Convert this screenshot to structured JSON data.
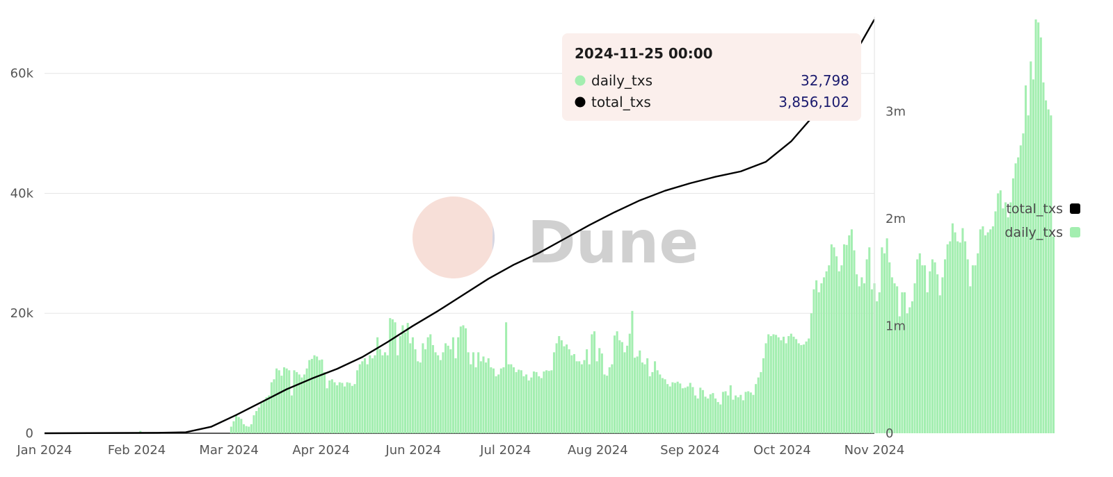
{
  "chart_data": {
    "type": "bar+line",
    "title": "",
    "xlabel": "",
    "ylabel": "",
    "x_range": [
      "2024-01-01",
      "2024-11-25"
    ],
    "x_ticks": [
      "Jan 2024",
      "Feb 2024",
      "Mar 2024",
      "Apr 2024",
      "Jun 2024",
      "Jul 2024",
      "Aug 2024",
      "Sep 2024",
      "Oct 2024",
      "Nov 2024"
    ],
    "y_left": {
      "range": [
        0,
        69000
      ],
      "ticks": [
        0,
        20000,
        40000,
        60000
      ],
      "tick_labels": [
        "0",
        "20k",
        "40k",
        "60k"
      ]
    },
    "y_right": {
      "range": [
        0,
        3856102
      ],
      "ticks": [
        0,
        1000000,
        2000000,
        3000000
      ],
      "tick_labels": [
        "0",
        "1m",
        "2m",
        "3m"
      ]
    },
    "grid": true,
    "legend_position": "right",
    "legend": [
      {
        "name": "total_txs",
        "color": "#000000"
      },
      {
        "name": "daily_txs",
        "color": "#a3eeb0"
      }
    ],
    "series": [
      {
        "name": "daily_txs",
        "type": "bar",
        "axis": "left",
        "color": "#a3eeb0",
        "x_start": "2024-01-01",
        "interval": "day",
        "values": [
          0,
          0,
          0,
          0,
          0,
          0,
          0,
          0,
          0,
          0,
          0,
          0,
          0,
          0,
          0,
          0,
          0,
          0,
          0,
          0,
          0,
          0,
          0,
          0,
          0,
          0,
          0,
          0,
          0,
          0,
          0,
          0,
          0,
          0,
          50,
          0,
          0,
          0,
          400,
          0,
          0,
          0,
          0,
          0,
          0,
          0,
          0,
          0,
          0,
          0,
          0,
          0,
          0,
          0,
          0,
          0,
          0,
          0,
          0,
          0,
          0,
          0,
          0,
          0,
          0,
          0,
          0,
          0,
          0,
          0,
          0,
          0,
          0,
          0,
          1100,
          2000,
          3000,
          2700,
          2400,
          1500,
          1200,
          1100,
          1500,
          3000,
          3700,
          4300,
          5000,
          5500,
          6000,
          6300,
          8500,
          9000,
          10800,
          10500,
          9600,
          11000,
          10800,
          10500,
          6300,
          10500,
          10200,
          9800,
          9300,
          9800,
          10800,
          12200,
          12400,
          13000,
          12800,
          12200,
          12300,
          10200,
          7500,
          8800,
          9000,
          8500,
          8000,
          8500,
          8400,
          7800,
          8500,
          8400,
          7900,
          8200,
          10500,
          11500,
          12000,
          12500,
          11500,
          13000,
          12500,
          13000,
          16000,
          14000,
          13000,
          13500,
          13000,
          19200,
          19000,
          18500,
          13000,
          16200,
          18000,
          16800,
          18400,
          15000,
          16000,
          14000,
          12000,
          11800,
          15000,
          14000,
          16000,
          16500,
          14700,
          13500,
          13000,
          12200,
          13500,
          15000,
          14600,
          14000,
          16000,
          12500,
          16000,
          17800,
          18000,
          17500,
          13500,
          11500,
          13500,
          11000,
          13500,
          12000,
          12800,
          11800,
          12500,
          11000,
          10800,
          9500,
          9800,
          10800,
          11000,
          18500,
          11500,
          11500,
          11000,
          10200,
          10600,
          10500,
          9500,
          9800,
          8800,
          9300,
          10300,
          10200,
          9500,
          9200,
          10300,
          10500,
          10400,
          10500,
          13500,
          15000,
          16200,
          15500,
          14500,
          14800,
          14000,
          13000,
          13200,
          12000,
          12000,
          11500,
          12200,
          14000,
          11500,
          16500,
          17000,
          12000,
          14200,
          13300,
          9800,
          9600,
          11000,
          11500,
          16300,
          17000,
          15500,
          15200,
          13500,
          14600,
          16600,
          20400,
          12600,
          12800,
          13800,
          11800,
          11500,
          12500,
          9500,
          10200,
          12000,
          10500,
          9800,
          9200,
          9000,
          8200,
          7800,
          8500,
          8400,
          8600,
          8300,
          7500,
          7600,
          7800,
          8400,
          7700,
          6300,
          5800,
          7600,
          7200,
          6100,
          5800,
          6500,
          6700,
          5800,
          5200,
          4800,
          6900,
          7000,
          6300,
          8000,
          5600,
          6300,
          6000,
          6400,
          5500,
          6900,
          7000,
          6800,
          6400,
          8200,
          9300,
          10200,
          12500,
          15000,
          16500,
          16200,
          16500,
          16400,
          16000,
          15500,
          16100,
          15000,
          16200,
          16600,
          16100,
          15700,
          15000,
          14700,
          14800,
          15300,
          15800,
          20000,
          24000,
          25500,
          23500,
          25000,
          26000,
          27000,
          28000,
          31500,
          31000,
          29500,
          27000,
          28000,
          31500,
          31400,
          33000,
          34000,
          30500,
          26500,
          24500,
          26000,
          25000,
          29000,
          31000,
          24000,
          25000,
          22000,
          23500,
          31000,
          30000,
          32500,
          28500,
          26000,
          25000,
          24500,
          19500,
          23500,
          23500,
          20000,
          21000,
          22000,
          25000,
          29000,
          30000,
          28000,
          28000,
          23500,
          27000,
          29000,
          28500,
          26500,
          23000,
          26000,
          29000,
          31500,
          32000,
          35000,
          33500,
          32000,
          31800,
          34200,
          32000,
          29000,
          24500,
          28000,
          28000,
          30000,
          34000,
          34500,
          33000,
          33500,
          34000,
          34500,
          37000,
          40000,
          40500,
          37500,
          38500,
          36000,
          38500,
          42500,
          45000,
          46000,
          48000,
          50000,
          58000,
          53000,
          62000,
          59000,
          69000,
          68500,
          66000,
          58500,
          55500,
          54000,
          53000,
          32798
        ]
      },
      {
        "name": "total_txs",
        "type": "line",
        "axis": "right",
        "color": "#000000",
        "points": [
          [
            "2024-01-01",
            0
          ],
          [
            "2024-02-15",
            4000
          ],
          [
            "2024-02-26",
            9000
          ],
          [
            "2024-03-07",
            60000
          ],
          [
            "2024-03-17",
            170000
          ],
          [
            "2024-03-27",
            290000
          ],
          [
            "2024-04-06",
            410000
          ],
          [
            "2024-04-16",
            510000
          ],
          [
            "2024-04-26",
            600000
          ],
          [
            "2024-05-06",
            710000
          ],
          [
            "2024-05-16",
            850000
          ],
          [
            "2024-05-26",
            1000000
          ],
          [
            "2024-06-05",
            1140000
          ],
          [
            "2024-06-15",
            1290000
          ],
          [
            "2024-06-25",
            1440000
          ],
          [
            "2024-07-05",
            1570000
          ],
          [
            "2024-07-15",
            1680000
          ],
          [
            "2024-07-25",
            1810000
          ],
          [
            "2024-08-04",
            1940000
          ],
          [
            "2024-08-14",
            2060000
          ],
          [
            "2024-08-24",
            2170000
          ],
          [
            "2024-09-03",
            2260000
          ],
          [
            "2024-09-13",
            2330000
          ],
          [
            "2024-09-23",
            2390000
          ],
          [
            "2024-10-03",
            2440000
          ],
          [
            "2024-10-13",
            2530000
          ],
          [
            "2024-10-23",
            2720000
          ],
          [
            "2024-11-02",
            2990000
          ],
          [
            "2024-11-12",
            3330000
          ],
          [
            "2024-11-20",
            3650000
          ],
          [
            "2024-11-25",
            3856102
          ]
        ]
      }
    ]
  },
  "tooltip": {
    "title": "2024-11-25 00:00",
    "rows": [
      {
        "name": "daily_txs",
        "value": "32,798",
        "color": "#a3eeb0"
      },
      {
        "name": "total_txs",
        "value": "3,856,102",
        "color": "#000000"
      }
    ]
  },
  "watermark": {
    "text": "Dune",
    "colors": {
      "top": "#f7dfd8",
      "bottom": "#d6d6e2"
    }
  }
}
